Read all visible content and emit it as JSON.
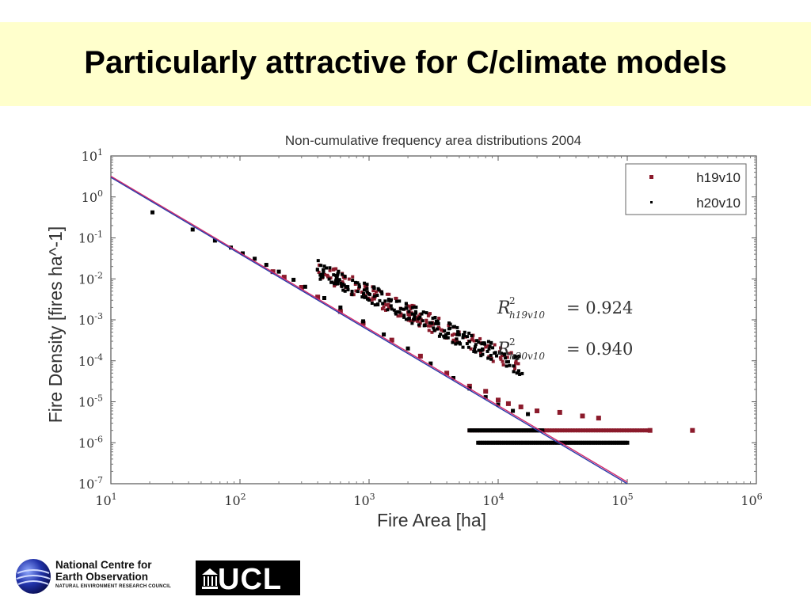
{
  "slide": {
    "title": "Particularly attractive for C/climate models"
  },
  "chart_data": {
    "type": "scatter",
    "title": "Non-cumulative frequency area distributions 2004",
    "xlabel": "Fire Area [ha]",
    "ylabel": "Fire Density [fires ha^-1]",
    "xscale": "log",
    "yscale": "log",
    "xlim": [
      10,
      1000000
    ],
    "ylim": [
      1e-07,
      10
    ],
    "x_ticks": [
      {
        "exp": "1"
      },
      {
        "exp": "2"
      },
      {
        "exp": "3"
      },
      {
        "exp": "4"
      },
      {
        "exp": "5"
      },
      {
        "exp": "6"
      }
    ],
    "y_ticks": [
      {
        "exp": "-7"
      },
      {
        "exp": "-6"
      },
      {
        "exp": "-5"
      },
      {
        "exp": "-4"
      },
      {
        "exp": "-3"
      },
      {
        "exp": "-2"
      },
      {
        "exp": "-1"
      },
      {
        "exp": "0"
      },
      {
        "exp": "1"
      }
    ],
    "tick_base": "10",
    "legend_position": "top-right",
    "series": [
      {
        "name": "h19v10",
        "color": "#8b1a2b",
        "marker": "square",
        "points": [
          [
            180,
            0.015
          ],
          [
            220,
            0.011
          ],
          [
            300,
            0.0062
          ],
          [
            400,
            0.0036
          ],
          [
            600,
            0.0016
          ],
          [
            900,
            0.00082
          ],
          [
            1500,
            0.00032
          ],
          [
            2500,
            0.00013
          ],
          [
            4000,
            5e-05
          ],
          [
            6000,
            2.4e-05
          ],
          [
            8000,
            1.8e-05
          ],
          [
            10000,
            1.1e-05
          ],
          [
            12000,
            9e-06
          ],
          [
            15000,
            7.5e-06
          ],
          [
            20000,
            6e-06
          ],
          [
            30000,
            5.5e-06
          ],
          [
            45000,
            4.5e-06
          ],
          [
            60000,
            4e-06
          ],
          [
            150000,
            2e-06
          ],
          [
            320000,
            2e-06
          ]
        ],
        "floor_y": 2e-06,
        "floor_range": [
          6000,
          150000
        ]
      },
      {
        "name": "h20v10",
        "color": "#000000",
        "marker": "square",
        "points": [
          [
            21,
            0.42
          ],
          [
            43,
            0.16
          ],
          [
            64,
            0.086
          ],
          [
            85,
            0.058
          ],
          [
            105,
            0.042
          ],
          [
            130,
            0.031
          ],
          [
            160,
            0.022
          ],
          [
            200,
            0.015
          ],
          [
            260,
            0.0095
          ],
          [
            320,
            0.0064
          ],
          [
            450,
            0.0034
          ],
          [
            600,
            0.002
          ],
          [
            900,
            0.00092
          ],
          [
            1300,
            0.00044
          ],
          [
            2000,
            0.0002
          ],
          [
            3000,
            8.6e-05
          ],
          [
            4500,
            3.8e-05
          ],
          [
            6000,
            2.1e-05
          ],
          [
            8000,
            1.3e-05
          ],
          [
            10000,
            8.5e-06
          ],
          [
            13000,
            6e-06
          ],
          [
            17000,
            5e-06
          ]
        ],
        "floor_y": 1e-06,
        "floor_range": [
          7000,
          100000
        ],
        "extra_y2": 2e-06,
        "extra_range2": [
          6000,
          22000
        ]
      }
    ],
    "fit_lines": [
      {
        "color": "#d22a6b",
        "from": [
          10,
          3.2
        ],
        "to": [
          100000,
          1.1e-07
        ]
      },
      {
        "color": "#2a3aa8",
        "from": [
          10,
          3.0
        ],
        "to": [
          100000,
          1e-07
        ]
      }
    ],
    "annotations": [
      {
        "label": "h19v10",
        "value": "= 0.924"
      },
      {
        "label": "h20v10",
        "value": "= 0.940"
      }
    ]
  },
  "logos": {
    "ncoe_line1": "National Centre for",
    "ncoe_line2": "Earth Observation",
    "ncoe_sub": "NATURAL ENVIRONMENT RESEARCH COUNCIL",
    "ucl": "UCL"
  }
}
